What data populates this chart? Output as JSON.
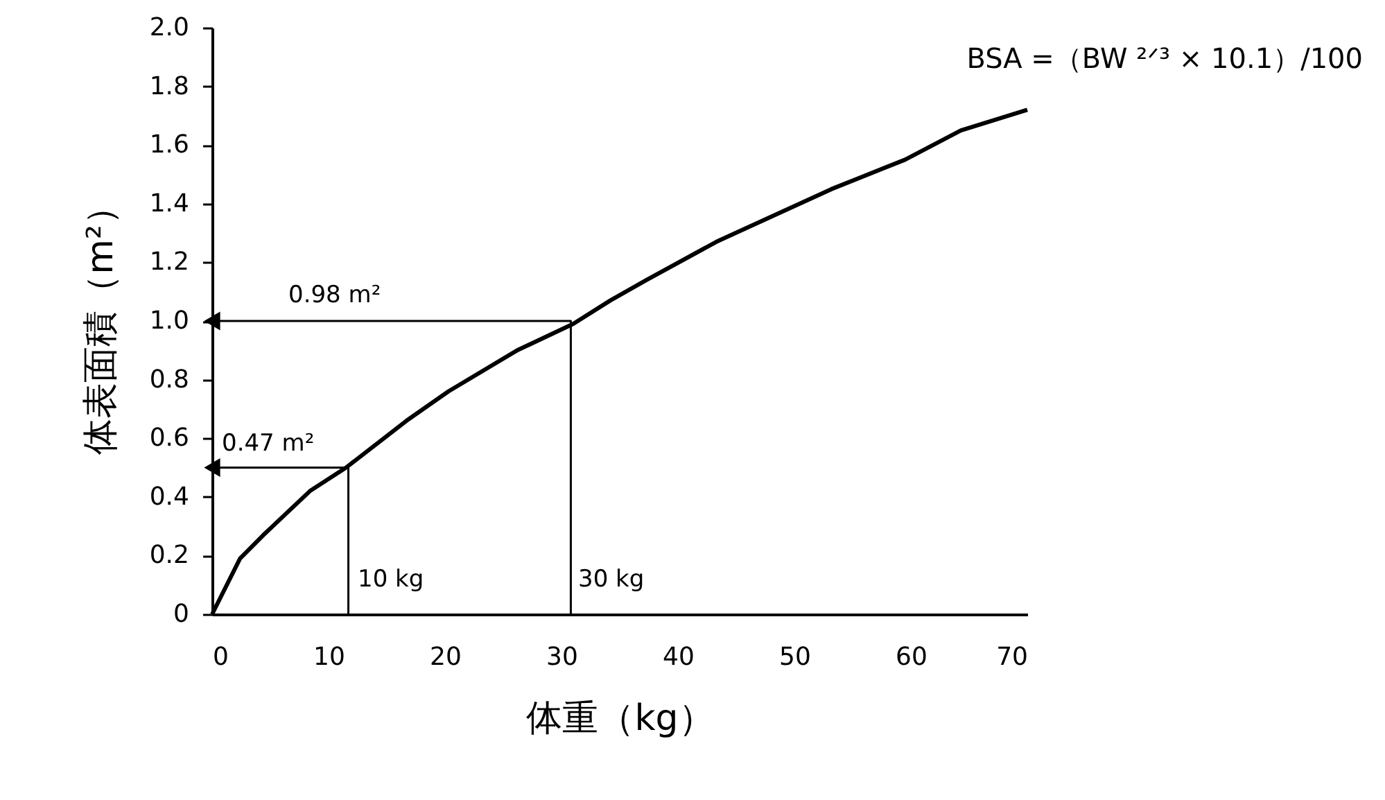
{
  "chart_data": {
    "type": "line",
    "xlabel": "体重（kg）",
    "ylabel": "体表面積（m²）",
    "xlim": [
      0,
      70
    ],
    "xticks": [
      0,
      10,
      20,
      30,
      40,
      50,
      60,
      70
    ],
    "ylim": [
      0,
      2
    ],
    "yticks": [
      {
        "value": 0,
        "label": "0"
      },
      0.2,
      0.4,
      0.6,
      0.8,
      {
        "value": 1,
        "label": "1.0"
      },
      1.2,
      1.4,
      1.6,
      1.8,
      {
        "value": 2,
        "label": "2.0"
      }
    ],
    "grid": false,
    "line_style": "solid",
    "series": [
      {
        "color": "#000000",
        "x": [
          0,
          2.4,
          4.4,
          8.4,
          11.5,
          16.7,
          20.3,
          26.2,
          31.0,
          34.2,
          37.3,
          43.3,
          48.8,
          53.2,
          59.5,
          64.3,
          70
        ],
        "values": [
          0,
          0.19,
          0.27,
          0.42,
          0.5,
          0.66,
          0.76,
          0.9,
          0.99,
          1.07,
          1.14,
          1.27,
          1.37,
          1.45,
          1.55,
          1.65,
          1.72
        ]
      },
      {
        "color": "#000000",
        "x": [
          0,
          11.7,
          11.7
        ],
        "values": [
          0.5,
          0.5,
          0
        ]
      },
      {
        "color": "#000000",
        "x": [
          0,
          30.8,
          30.8
        ],
        "values": [
          1.0,
          1.0,
          0
        ]
      }
    ],
    "annotations": [
      "0.47 m²",
      "0.98 m²",
      "10 kg",
      "30 kg",
      "BSA =（BW ²ᐟ³ × 10.1）/100"
    ]
  }
}
